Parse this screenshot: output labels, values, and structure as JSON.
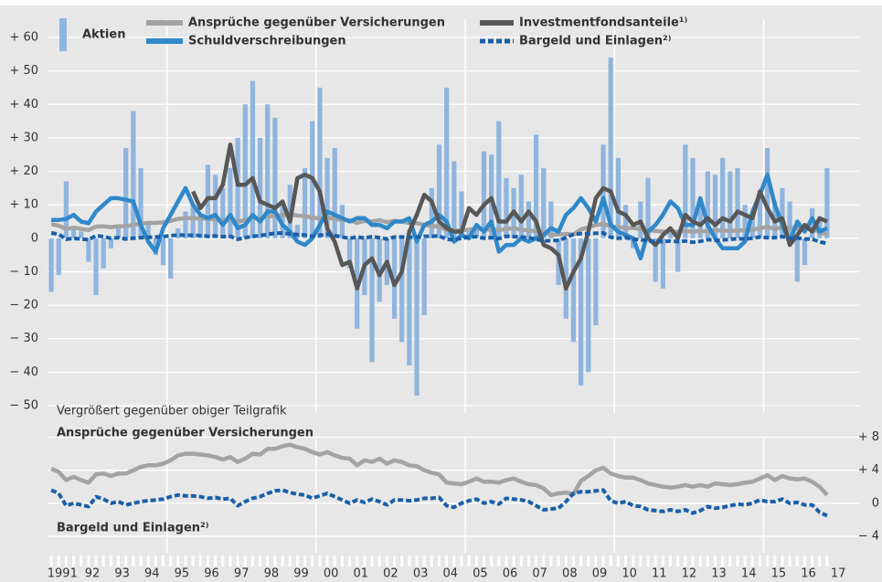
{
  "chart_data": {
    "type": "combo",
    "x": [
      1991.125,
      1991.375,
      1991.625,
      1991.875,
      1992.125,
      1992.375,
      1992.625,
      1992.875,
      1993.125,
      1993.375,
      1993.625,
      1993.875,
      1994.125,
      1994.375,
      1994.625,
      1994.875,
      1995.125,
      1995.375,
      1995.625,
      1995.875,
      1996.125,
      1996.375,
      1996.625,
      1996.875,
      1997.125,
      1997.375,
      1997.625,
      1997.875,
      1998.125,
      1998.375,
      1998.625,
      1998.875,
      1999.125,
      1999.375,
      1999.625,
      1999.875,
      2000.125,
      2000.375,
      2000.625,
      2000.875,
      2001.125,
      2001.375,
      2001.625,
      2001.875,
      2002.125,
      2002.375,
      2002.625,
      2002.875,
      2003.125,
      2003.375,
      2003.625,
      2003.875,
      2004.125,
      2004.375,
      2004.625,
      2004.875,
      2005.125,
      2005.375,
      2005.625,
      2005.875,
      2006.125,
      2006.375,
      2006.625,
      2006.875,
      2007.125,
      2007.375,
      2007.625,
      2007.875,
      2008.125,
      2008.375,
      2008.625,
      2008.875,
      2009.125,
      2009.375,
      2009.625,
      2009.875,
      2010.125,
      2010.375,
      2010.625,
      2010.875,
      2011.125,
      2011.375,
      2011.625,
      2011.875,
      2012.125,
      2012.375,
      2012.625,
      2012.875,
      2013.125,
      2013.375,
      2013.625,
      2013.875,
      2014.125,
      2014.375,
      2014.625,
      2014.875,
      2015.125,
      2015.375,
      2015.625,
      2015.875,
      2016.125,
      2016.375,
      2016.625,
      2016.875,
      2017.125
    ],
    "series": [
      {
        "name": "Aktien",
        "kind": "bar",
        "color": "#8fb5de",
        "values": [
          -16,
          -11,
          17,
          3,
          2,
          -7,
          -17,
          -9,
          -3,
          4,
          27,
          38,
          21,
          5,
          -5,
          -8,
          -12,
          3,
          8,
          10,
          7,
          22,
          19,
          15,
          21,
          30,
          40,
          47,
          30,
          40,
          36,
          10,
          16,
          4,
          21,
          35,
          45,
          24,
          27,
          10,
          -9,
          -27,
          -17,
          -37,
          -19,
          -14,
          -24,
          -31,
          -38,
          -47,
          -23,
          15,
          28,
          45,
          23,
          14,
          3,
          3,
          26,
          25,
          35,
          18,
          15,
          19,
          11,
          31,
          21,
          11,
          -14,
          -24,
          -31,
          -44,
          -40,
          -26,
          28,
          54,
          24,
          10,
          -3,
          11,
          18,
          -13,
          -15,
          3,
          -10,
          28,
          24,
          11,
          20,
          19,
          24,
          20,
          21,
          10,
          7,
          12,
          27,
          11,
          15,
          11,
          -13,
          -8,
          9,
          6,
          21
        ]
      },
      {
        "name": "Ansprüche gegenüber Versicherungen",
        "kind": "line",
        "color": "#a3a3a3",
        "inset": true,
        "values": [
          4.2,
          3.8,
          2.8,
          3.2,
          2.8,
          2.5,
          3.5,
          3.6,
          3.3,
          3.6,
          3.6,
          4.0,
          4.4,
          4.6,
          4.6,
          4.8,
          5.2,
          5.8,
          6.0,
          6.0,
          5.9,
          5.8,
          5.6,
          5.3,
          5.6,
          5.0,
          5.4,
          6.0,
          5.9,
          6.6,
          6.6,
          6.9,
          7.1,
          6.8,
          6.6,
          6.2,
          5.9,
          6.2,
          5.8,
          5.5,
          5.4,
          4.6,
          5.2,
          5.0,
          5.4,
          4.8,
          5.2,
          5.0,
          4.6,
          4.5,
          4.0,
          3.7,
          3.5,
          2.5,
          2.4,
          2.3,
          2.6,
          3.0,
          2.6,
          2.6,
          2.5,
          2.8,
          3.0,
          2.6,
          2.3,
          2.2,
          1.8,
          1.0,
          1.2,
          1.3,
          1.1,
          2.7,
          3.3,
          4.0,
          4.3,
          3.6,
          3.3,
          3.1,
          3.1,
          2.8,
          2.4,
          2.2,
          2.0,
          1.9,
          2.0,
          2.2,
          2.0,
          2.2,
          2.0,
          2.4,
          2.3,
          2.2,
          2.3,
          2.5,
          2.6,
          3.0,
          3.4,
          2.8,
          3.3,
          3.0,
          2.9,
          3.0,
          2.6,
          2.0,
          1.0
        ]
      },
      {
        "name": "Schuldverschreibungen",
        "kind": "line",
        "color": "#2f88c9",
        "values": [
          5.5,
          5.5,
          5.8,
          7,
          5,
          4.5,
          8,
          10,
          12,
          12,
          11.5,
          11,
          4,
          -1,
          -4,
          3,
          7,
          11,
          15,
          10,
          7,
          6,
          7,
          4,
          7,
          3,
          4,
          7,
          5,
          8,
          8,
          4,
          2,
          -1,
          -2,
          0,
          4,
          8,
          7,
          6,
          5,
          6,
          6,
          4,
          4,
          3,
          5,
          5,
          6,
          -1,
          4,
          5,
          7,
          5,
          -1,
          1,
          0,
          4,
          2,
          5,
          -4,
          -2,
          -2,
          0,
          -1,
          0,
          1,
          3,
          2,
          7,
          9,
          12,
          9,
          5,
          12,
          4,
          2,
          1,
          0,
          -6,
          2,
          4,
          7,
          11,
          9,
          4,
          4,
          12,
          4,
          0,
          -3,
          -3,
          -3,
          -1,
          8,
          13,
          19,
          10,
          4,
          -1,
          5,
          2,
          6,
          2,
          3
        ]
      },
      {
        "name": "Investmentfondsanteile¹⁾",
        "kind": "line",
        "color": "#575757",
        "values": [
          null,
          null,
          null,
          null,
          null,
          null,
          null,
          null,
          null,
          null,
          null,
          null,
          null,
          null,
          null,
          null,
          null,
          null,
          null,
          14,
          9,
          12,
          12,
          16,
          28,
          16,
          16,
          18,
          11,
          10,
          9,
          11,
          5,
          18,
          19,
          18,
          14,
          3,
          -1,
          -8,
          -7,
          -15,
          -8,
          -6,
          -11,
          -7,
          -14,
          -10,
          2,
          7,
          13,
          11,
          5,
          3,
          2,
          2,
          9,
          7,
          10,
          12,
          5,
          5,
          8,
          5,
          8,
          5,
          -2,
          -3,
          -5,
          -15,
          -10,
          -6,
          2,
          12,
          15,
          14,
          8,
          7,
          4,
          5,
          0,
          -2,
          1,
          3,
          0,
          7,
          5,
          4,
          6,
          4,
          6,
          5,
          8,
          7,
          6,
          14,
          9,
          5,
          6,
          -2,
          1,
          4,
          2,
          6,
          5
        ]
      },
      {
        "name": "Bargeld und Einlagen²⁾",
        "kind": "line",
        "dash": true,
        "color": "#1a5fa9",
        "inset": true,
        "values": [
          1.6,
          1.2,
          -0.3,
          0.0,
          -0.2,
          -0.4,
          0.8,
          0.5,
          0.0,
          0.2,
          -0.2,
          0.0,
          0.2,
          0.3,
          0.4,
          0.5,
          0.8,
          1.0,
          0.9,
          0.9,
          0.8,
          0.6,
          0.7,
          0.5,
          0.6,
          -0.3,
          0.2,
          0.6,
          0.8,
          1.2,
          1.5,
          1.6,
          1.3,
          1.1,
          1.0,
          0.6,
          0.9,
          1.2,
          0.8,
          0.4,
          0.0,
          0.4,
          0.1,
          0.5,
          0.2,
          -0.2,
          0.4,
          0.4,
          0.3,
          0.4,
          0.6,
          0.6,
          0.7,
          -0.3,
          -0.5,
          0.0,
          0.3,
          0.5,
          0.0,
          0.2,
          -0.1,
          0.6,
          0.5,
          0.4,
          0.2,
          -0.3,
          -0.8,
          -0.7,
          -0.6,
          0.2,
          1.2,
          1.4,
          1.4,
          1.5,
          1.6,
          0.3,
          0.0,
          0.2,
          -0.3,
          -0.4,
          -0.8,
          -0.9,
          -1.0,
          -0.8,
          -1.0,
          -0.8,
          -1.2,
          -0.9,
          -0.4,
          -0.6,
          -0.5,
          -0.3,
          -0.1,
          -0.2,
          0.0,
          0.4,
          0.2,
          0.2,
          0.5,
          0.0,
          0.1,
          -0.2,
          -0.2,
          -1.1,
          -1.5
        ]
      }
    ],
    "xlim": [
      1991,
      2018.2
    ],
    "xticks": [
      {
        "value": 1991.5,
        "label": "1991"
      },
      {
        "value": 1992.5,
        "label": "92"
      },
      {
        "value": 1993.5,
        "label": "93"
      },
      {
        "value": 1994.5,
        "label": "94"
      },
      {
        "value": 1995.5,
        "label": "95"
      },
      {
        "value": 1996.5,
        "label": "96"
      },
      {
        "value": 1997.5,
        "label": "97"
      },
      {
        "value": 1998.5,
        "label": "98"
      },
      {
        "value": 1999.5,
        "label": "99"
      },
      {
        "value": 2000.5,
        "label": "00"
      },
      {
        "value": 2001.5,
        "label": "01"
      },
      {
        "value": 2002.5,
        "label": "02"
      },
      {
        "value": 2003.5,
        "label": "03"
      },
      {
        "value": 2004.5,
        "label": "04"
      },
      {
        "value": 2005.5,
        "label": "05"
      },
      {
        "value": 2006.5,
        "label": "06"
      },
      {
        "value": 2007.5,
        "label": "07"
      },
      {
        "value": 2008.5,
        "label": "08"
      },
      {
        "value": 2009.5,
        "label": "09"
      },
      {
        "value": 2010.5,
        "label": "10"
      },
      {
        "value": 2011.5,
        "label": "11"
      },
      {
        "value": 2012.5,
        "label": "12"
      },
      {
        "value": 2013.5,
        "label": "13"
      },
      {
        "value": 2014.5,
        "label": "14"
      },
      {
        "value": 2015.5,
        "label": "15"
      },
      {
        "value": 2016.5,
        "label": "16"
      },
      {
        "value": 2017.5,
        "label": "17"
      }
    ],
    "xgrid": [
      1995,
      2000,
      2005,
      2010,
      2015
    ],
    "ylim": [
      -50,
      60
    ],
    "yticks": [
      {
        "value": 60,
        "label": "+ 60"
      },
      {
        "value": 50,
        "label": "+ 50"
      },
      {
        "value": 40,
        "label": "+ 40"
      },
      {
        "value": 30,
        "label": "+ 30"
      },
      {
        "value": 20,
        "label": "+ 20"
      },
      {
        "value": 10,
        "label": "+ 10"
      },
      0,
      {
        "value": -10,
        "label": "− 10"
      },
      {
        "value": -20,
        "label": "− 20"
      },
      {
        "value": -30,
        "label": "− 30"
      },
      {
        "value": -40,
        "label": "− 40"
      },
      {
        "value": -50,
        "label": "− 50"
      }
    ],
    "grid": true,
    "inset": {
      "title": "Vergrößert gegenüber obiger Teilgrafik",
      "ylim": [
        -6,
        9.5
      ],
      "yticks": [
        {
          "value": 8,
          "label": "+ 8"
        },
        {
          "value": 4,
          "label": "+ 4"
        },
        0,
        {
          "value": -4,
          "label": "− 4"
        }
      ]
    }
  }
}
